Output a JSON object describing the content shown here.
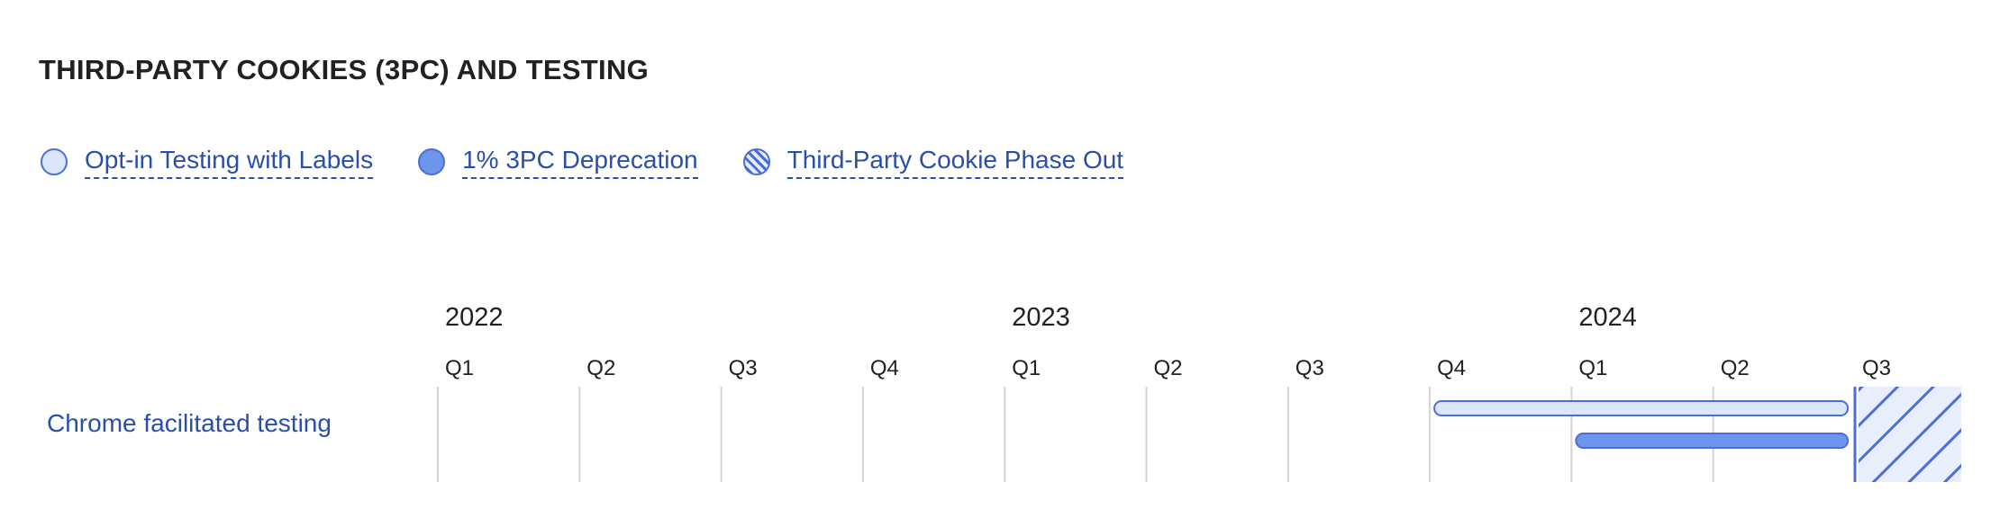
{
  "title": "THIRD-PARTY COOKIES (3PC) AND TESTING",
  "legend": [
    {
      "label": "Opt-in Testing with Labels",
      "style": "light",
      "icon": "light-circle-icon"
    },
    {
      "label": "1% 3PC Deprecation",
      "style": "solid",
      "icon": "solid-circle-icon"
    },
    {
      "label": "Third-Party Cookie Phase Out",
      "style": "hatched",
      "icon": "hatched-circle-icon"
    }
  ],
  "colors": {
    "light_fill": "#dce6fa",
    "solid_fill": "#6d95ec",
    "stroke": "#4a6ed9",
    "hatch_bg": "#e8eefc",
    "link": "#2a4fa8",
    "grid": "#d4d4d4"
  },
  "chart_data": {
    "type": "timeline",
    "years": [
      "2022",
      "2023",
      "2024"
    ],
    "quarters": [
      "Q1",
      "Q2",
      "Q3",
      "Q4",
      "Q1",
      "Q2",
      "Q3",
      "Q4",
      "Q1",
      "Q2",
      "Q3"
    ],
    "rows": [
      {
        "label": "Chrome facilitated testing",
        "bars": [
          {
            "series": "Opt-in Testing with Labels",
            "start": 7.0,
            "end": 9.95,
            "style": "light",
            "lane": 0
          },
          {
            "series": "1% 3PC Deprecation",
            "start": 8.0,
            "end": 9.95,
            "style": "solid",
            "lane": 1
          },
          {
            "series": "Third-Party Cookie Phase Out",
            "start": 10.0,
            "end": 10.75,
            "style": "hatched",
            "lane": "full"
          }
        ]
      }
    ]
  }
}
